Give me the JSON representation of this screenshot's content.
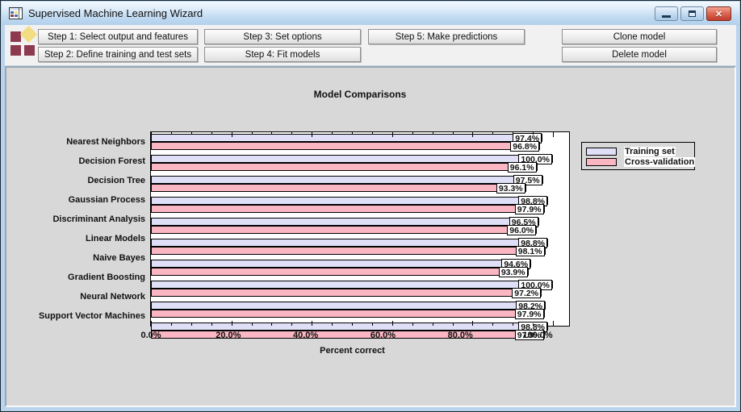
{
  "window": {
    "title": "Supervised Machine Learning Wizard"
  },
  "toolbar": {
    "buttons": {
      "step1": "Step 1: Select output and features",
      "step2": "Step 2: Define training and test sets",
      "step3": "Step 3: Set options",
      "step4": "Step 4: Fit models",
      "step5": "Step 5: Make predictions",
      "clone": "Clone model",
      "delete": "Delete model"
    }
  },
  "chart_data": {
    "type": "bar",
    "orientation": "horizontal",
    "title": "Model Comparisons",
    "xlabel": "Percent correct",
    "categories": [
      "Nearest Neighbors",
      "Decision Forest",
      "Decision Tree",
      "Gaussian Process",
      "Discriminant Analysis",
      "Linear Models",
      "Naive Bayes",
      "Gradient Boosting",
      "Neural Network",
      "Support Vector Machines"
    ],
    "series": [
      {
        "name": "Training set",
        "color": "#dfe0f7",
        "values": [
          97.4,
          100.0,
          97.5,
          98.8,
          96.5,
          98.8,
          94.6,
          100.0,
          98.2,
          98.8
        ]
      },
      {
        "name": "Cross-validation",
        "color": "#fbb6c3",
        "values": [
          96.8,
          96.1,
          93.3,
          97.9,
          96.0,
          98.1,
          93.9,
          97.2,
          97.9,
          97.9
        ]
      }
    ],
    "xlim": [
      0,
      100
    ],
    "xtick_labels": [
      "0.0%",
      "20.0%",
      "40.0%",
      "60.0%",
      "80.0%",
      "100.0%"
    ],
    "xtick_values": [
      0,
      20,
      40,
      60,
      80,
      100
    ],
    "minor_tick_step": 5,
    "grid": false,
    "plot_background": "#ffffff",
    "legend_position": "top-right-outside",
    "value_label_format": "{value}%"
  },
  "colors": {
    "frame": "#b9d4ec",
    "toolbar_bg": "#f1f1f1",
    "panel_bg": "#d8d8d8",
    "close_button_red": "#c23b2b",
    "logo_maroon": "#8d3a50",
    "logo_yellow": "#f2dd83",
    "bar_training": "#dfe0f7",
    "bar_crossval": "#fbb6c3"
  }
}
